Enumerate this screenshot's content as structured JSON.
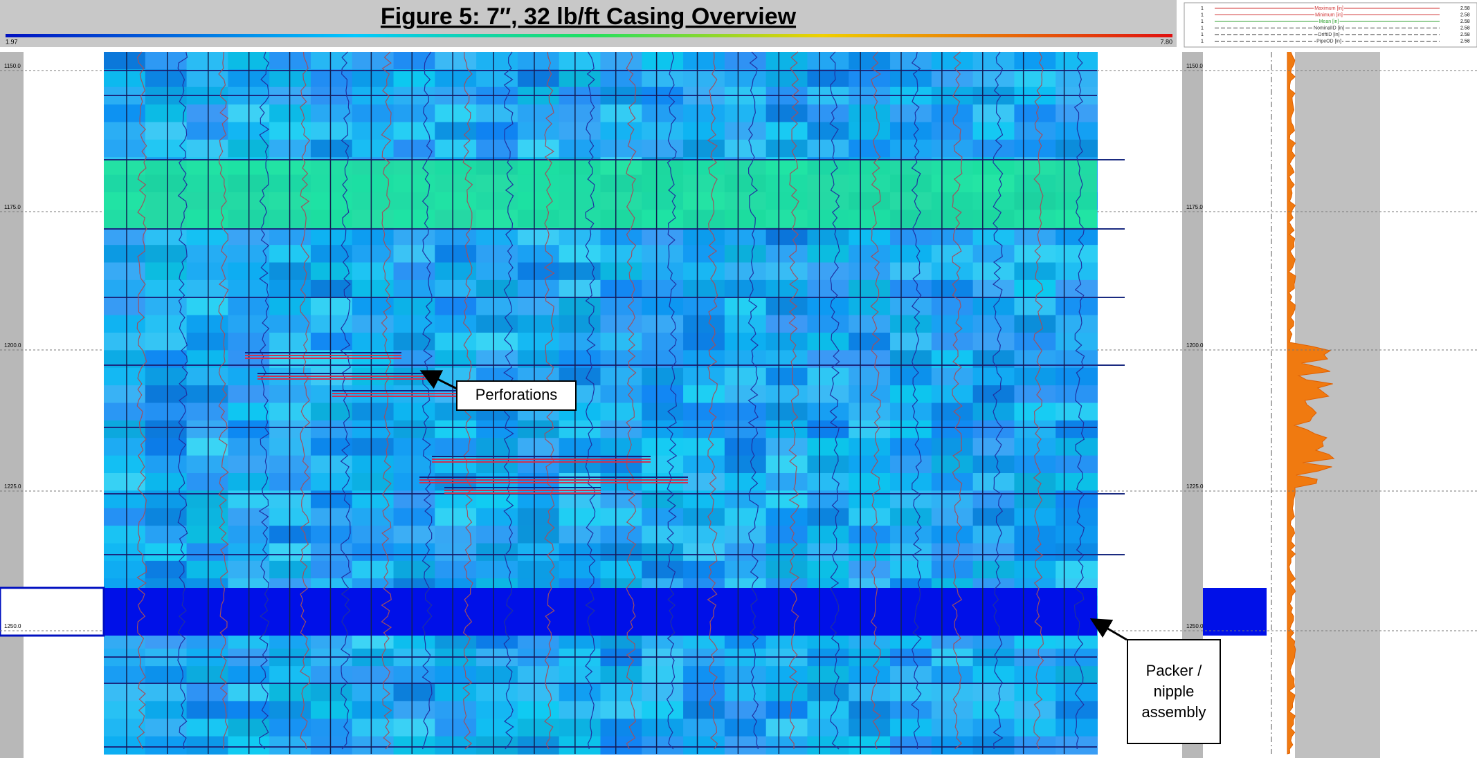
{
  "header": {
    "title": "Figure 5: 7″, 32 lb/ft Casing Overview",
    "scale_min": "1.97",
    "scale_max": "7.80"
  },
  "depth_labels": [
    "1150.0",
    "1175.0",
    "1200.0",
    "1225.0",
    "1250.0"
  ],
  "legend": [
    {
      "min": "1",
      "label": "Maximum [in]",
      "max": "2.58",
      "color": "#d03030"
    },
    {
      "min": "1",
      "label": "Minimum [in]",
      "max": "2.58",
      "color": "#d03030"
    },
    {
      "min": "1",
      "label": "Mean [in]",
      "max": "2.58",
      "color": "#30a030"
    },
    {
      "min": "1",
      "label": "NominalID [in]",
      "max": "2.58",
      "color": "#333333"
    },
    {
      "min": "1",
      "label": "DriftID [in]",
      "max": "2.58",
      "color": "#333333"
    },
    {
      "min": "1",
      "label": "PipeOD [in]",
      "max": "2.58",
      "color": "#333333"
    }
  ],
  "annotations": {
    "perforations": "Perforations",
    "packer": "Packer / nipple assembly"
  }
}
